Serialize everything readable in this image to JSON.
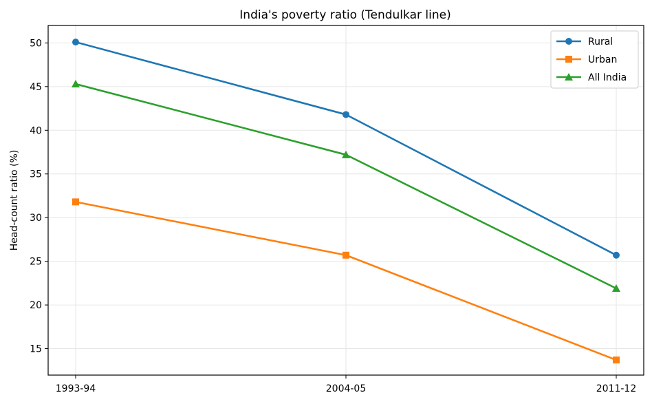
{
  "chart_data": {
    "type": "line",
    "title": "India's poverty ratio (Tendulkar line)",
    "xlabel": "",
    "ylabel": "Head-count ratio (%)",
    "categories": [
      "1993-94",
      "2004-05",
      "2011-12"
    ],
    "ylim": [
      11.97,
      52.0
    ],
    "yticks": [
      15,
      20,
      25,
      30,
      35,
      40,
      45,
      50
    ],
    "grid": true,
    "legend_position": "top-right",
    "series": [
      {
        "name": "Rural",
        "values": [
          50.1,
          41.8,
          25.7
        ],
        "color": "#1f77b4",
        "marker": "circle"
      },
      {
        "name": "Urban",
        "values": [
          31.8,
          25.7,
          13.7
        ],
        "color": "#ff7f0e",
        "marker": "square"
      },
      {
        "name": "All India",
        "values": [
          45.3,
          37.2,
          21.9
        ],
        "color": "#2ca02c",
        "marker": "triangle"
      }
    ]
  }
}
